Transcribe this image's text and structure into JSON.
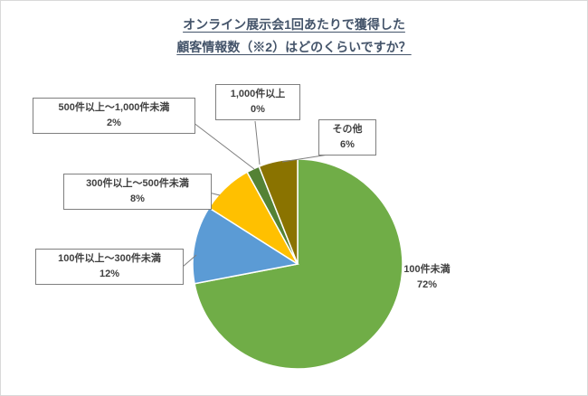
{
  "chart_data": {
    "type": "pie",
    "title": "オンライン展示会1回あたりで獲得した 顧客情報数（※2）はどのくらいですか？",
    "title_lines": [
      "オンライン展示会1回あたりで獲得した",
      "顧客情報数（※2）はどのくらいですか？"
    ],
    "legend": "none",
    "direction": "clockwise",
    "start_angle_deg": 0,
    "data_labels": "category name + percent, outside with leader lines",
    "slices": [
      {
        "label": "100件未満",
        "pct_label": "72%",
        "value": 72,
        "color": "#70AD47"
      },
      {
        "label": "100件以上～300件未満",
        "pct_label": "12%",
        "value": 12,
        "color": "#5B9BD5"
      },
      {
        "label": "300件以上～500件未満",
        "pct_label": "8%",
        "value": 8,
        "color": "#FFC000"
      },
      {
        "label": "500件以上～1,000件未満",
        "pct_label": "2%",
        "value": 2,
        "color": "#548235"
      },
      {
        "label": "1,000件以上",
        "pct_label": "0%",
        "value": 0,
        "color": "#43682B"
      },
      {
        "label": "その他",
        "pct_label": "6%",
        "value": 6,
        "color": "#8A7300"
      }
    ]
  }
}
